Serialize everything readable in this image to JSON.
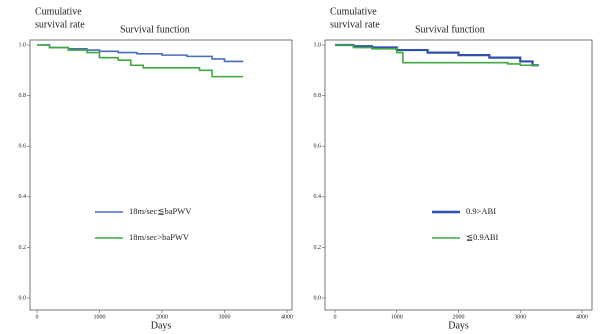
{
  "chart_data": [
    {
      "type": "line",
      "step": true,
      "title": "Survival function",
      "ylabel": [
        "Cumulative",
        "survival rate"
      ],
      "xlabel": "Days",
      "xlim": [
        0,
        4000
      ],
      "xticks": [
        0,
        1000,
        2000,
        3000,
        4000
      ],
      "ylim": [
        0,
        1
      ],
      "yticks": [
        {
          "value": 0,
          "label": "0.0"
        },
        0.2,
        0.4,
        0.6,
        0.8,
        {
          "value": 1,
          "label": "1.0"
        }
      ],
      "series": [
        {
          "name": "18m/sec≦baPWV",
          "color": "#4a6cc0",
          "x": [
            0,
            200,
            500,
            800,
            1000,
            1300,
            1600,
            2000,
            2400,
            2800,
            3000,
            3300
          ],
          "values": [
            1.0,
            0.99,
            0.985,
            0.98,
            0.975,
            0.97,
            0.965,
            0.96,
            0.955,
            0.945,
            0.935,
            0.935
          ]
        },
        {
          "name": "18m/sec>baPWV",
          "color": "#3faa3f",
          "x": [
            0,
            200,
            500,
            800,
            1000,
            1300,
            1500,
            1700,
            2200,
            2600,
            2800,
            3300
          ],
          "values": [
            1.0,
            0.99,
            0.98,
            0.97,
            0.95,
            0.94,
            0.92,
            0.91,
            0.91,
            0.9,
            0.875,
            0.875
          ]
        }
      ]
    },
    {
      "type": "line",
      "step": true,
      "title": "Survival function",
      "ylabel": [
        "Cumulative",
        "survival rate"
      ],
      "xlabel": "Days",
      "xlim": [
        0,
        4000
      ],
      "xticks": [
        0,
        1000,
        2000,
        3000,
        4000
      ],
      "ylim": [
        0,
        1
      ],
      "yticks": [
        {
          "value": 0,
          "label": "0.0"
        },
        0.2,
        0.4,
        0.6,
        0.8,
        {
          "value": 1,
          "label": "1.0"
        }
      ],
      "series": [
        {
          "name": "0.9>ABI",
          "color": "#2f4fb0",
          "x": [
            0,
            300,
            600,
            1000,
            1500,
            2000,
            2500,
            3000,
            3200,
            3300
          ],
          "values": [
            1.0,
            0.995,
            0.99,
            0.98,
            0.97,
            0.96,
            0.95,
            0.935,
            0.92,
            0.92
          ]
        },
        {
          "name": "≦0.9ABI",
          "color": "#3faa3f",
          "x": [
            0,
            300,
            600,
            1000,
            1100,
            2000,
            2500,
            2800,
            3000,
            3300
          ],
          "values": [
            1.0,
            0.99,
            0.985,
            0.97,
            0.93,
            0.93,
            0.93,
            0.925,
            0.92,
            0.92
          ]
        }
      ]
    }
  ]
}
